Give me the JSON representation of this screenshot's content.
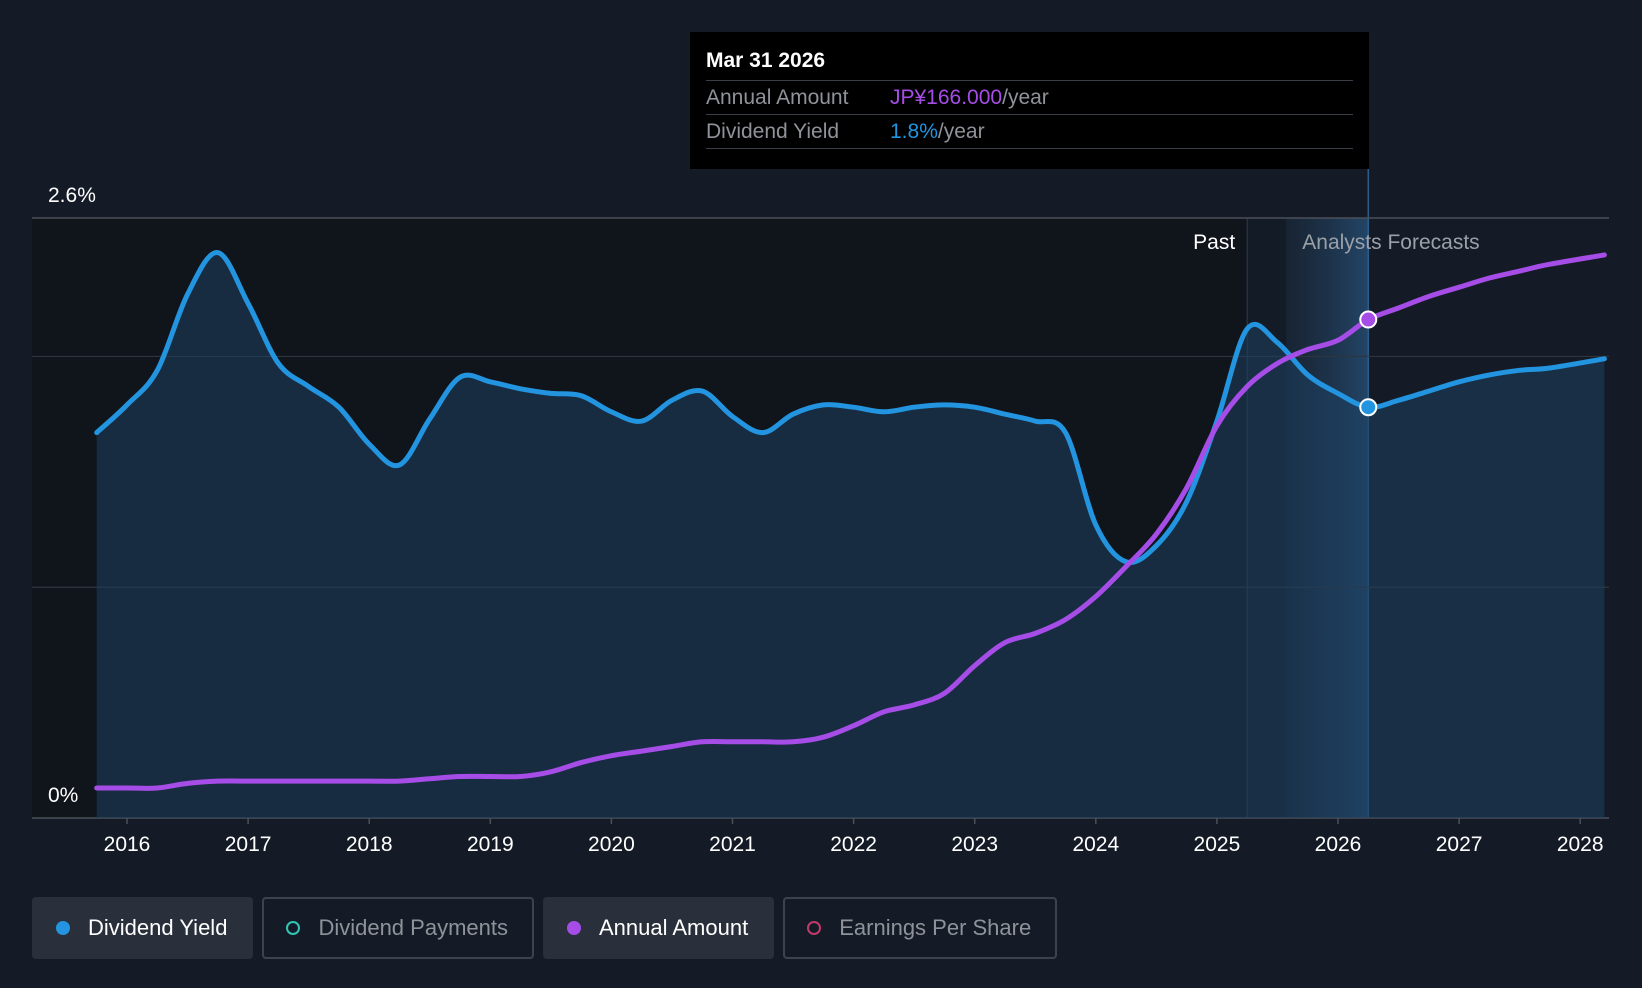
{
  "colors": {
    "background": "#151b26",
    "yield": "#2394df",
    "annual": "#a64de8",
    "payments": "#30c6b5",
    "eps": "#c03a6a"
  },
  "tooltip": {
    "date": "Mar 31 2026",
    "annual_label": "Annual Amount",
    "annual_value": "JP¥166.000",
    "annual_unit": "/year",
    "yield_label": "Dividend Yield",
    "yield_value": "1.8%",
    "yield_unit": "/year"
  },
  "regions": {
    "past_label": "Past",
    "forecast_label": "Analysts Forecasts"
  },
  "legend": [
    {
      "label": "Dividend Yield",
      "icon": "filled-dot",
      "color": "#2394df",
      "active": true
    },
    {
      "label": "Dividend Payments",
      "icon": "hollow-dot",
      "color": "#30c6b5",
      "active": false
    },
    {
      "label": "Annual Amount",
      "icon": "filled-dot",
      "color": "#a64de8",
      "active": true
    },
    {
      "label": "Earnings Per Share",
      "icon": "hollow-dot",
      "color": "#c03a6a",
      "active": false
    }
  ],
  "chart_data": {
    "type": "line",
    "x_ticks": [
      "2016",
      "2017",
      "2018",
      "2019",
      "2020",
      "2021",
      "2022",
      "2023",
      "2024",
      "2025",
      "2026",
      "2027",
      "2028"
    ],
    "y_tick_labels": [
      "2.6%",
      "0%"
    ],
    "ylim": [
      0,
      2.6
    ],
    "xlim": [
      2015.5,
      2028.2
    ],
    "grid": true,
    "past_end": 2025.25,
    "forecast_start": 2025.57,
    "highlight_x": 2026.25,
    "series": [
      {
        "name": "Dividend Yield",
        "color": "#2394df",
        "area": true,
        "points": [
          [
            2015.75,
            1.67
          ],
          [
            2016.0,
            1.79
          ],
          [
            2016.25,
            1.94
          ],
          [
            2016.5,
            2.27
          ],
          [
            2016.75,
            2.45
          ],
          [
            2017.0,
            2.23
          ],
          [
            2017.25,
            1.97
          ],
          [
            2017.5,
            1.87
          ],
          [
            2017.75,
            1.78
          ],
          [
            2018.0,
            1.62
          ],
          [
            2018.25,
            1.53
          ],
          [
            2018.5,
            1.73
          ],
          [
            2018.75,
            1.91
          ],
          [
            2019.0,
            1.89
          ],
          [
            2019.25,
            1.86
          ],
          [
            2019.5,
            1.84
          ],
          [
            2019.75,
            1.83
          ],
          [
            2020.0,
            1.76
          ],
          [
            2020.25,
            1.72
          ],
          [
            2020.5,
            1.81
          ],
          [
            2020.75,
            1.85
          ],
          [
            2021.0,
            1.74
          ],
          [
            2021.25,
            1.67
          ],
          [
            2021.5,
            1.75
          ],
          [
            2021.75,
            1.79
          ],
          [
            2022.0,
            1.78
          ],
          [
            2022.25,
            1.76
          ],
          [
            2022.5,
            1.78
          ],
          [
            2022.75,
            1.79
          ],
          [
            2023.0,
            1.78
          ],
          [
            2023.25,
            1.75
          ],
          [
            2023.5,
            1.72
          ],
          [
            2023.75,
            1.67
          ],
          [
            2024.0,
            1.27
          ],
          [
            2024.25,
            1.11
          ],
          [
            2024.5,
            1.18
          ],
          [
            2024.75,
            1.37
          ],
          [
            2025.0,
            1.72
          ],
          [
            2025.25,
            2.12
          ],
          [
            2025.5,
            2.06
          ],
          [
            2025.75,
            1.92
          ],
          [
            2026.0,
            1.84
          ],
          [
            2026.25,
            1.78
          ],
          [
            2026.5,
            1.81
          ],
          [
            2026.75,
            1.85
          ],
          [
            2027.0,
            1.89
          ],
          [
            2027.25,
            1.92
          ],
          [
            2027.5,
            1.94
          ],
          [
            2027.75,
            1.95
          ],
          [
            2028.2,
            1.99
          ]
        ]
      },
      {
        "name": "Annual Amount",
        "color": "#a64de8",
        "area": false,
        "points": [
          [
            2015.75,
            0.13
          ],
          [
            2016.0,
            0.13
          ],
          [
            2016.25,
            0.13
          ],
          [
            2016.5,
            0.15
          ],
          [
            2016.75,
            0.16
          ],
          [
            2017.0,
            0.16
          ],
          [
            2017.5,
            0.16
          ],
          [
            2018.0,
            0.16
          ],
          [
            2018.25,
            0.16
          ],
          [
            2018.5,
            0.17
          ],
          [
            2018.75,
            0.18
          ],
          [
            2019.0,
            0.18
          ],
          [
            2019.25,
            0.18
          ],
          [
            2019.5,
            0.2
          ],
          [
            2019.75,
            0.24
          ],
          [
            2020.0,
            0.27
          ],
          [
            2020.25,
            0.29
          ],
          [
            2020.5,
            0.31
          ],
          [
            2020.75,
            0.33
          ],
          [
            2021.0,
            0.33
          ],
          [
            2021.25,
            0.33
          ],
          [
            2021.5,
            0.33
          ],
          [
            2021.75,
            0.35
          ],
          [
            2022.0,
            0.4
          ],
          [
            2022.25,
            0.46
          ],
          [
            2022.5,
            0.49
          ],
          [
            2022.75,
            0.54
          ],
          [
            2023.0,
            0.66
          ],
          [
            2023.25,
            0.76
          ],
          [
            2023.5,
            0.8
          ],
          [
            2023.75,
            0.86
          ],
          [
            2024.0,
            0.96
          ],
          [
            2024.25,
            1.09
          ],
          [
            2024.5,
            1.23
          ],
          [
            2024.75,
            1.43
          ],
          [
            2025.0,
            1.7
          ],
          [
            2025.25,
            1.87
          ],
          [
            2025.5,
            1.97
          ],
          [
            2025.75,
            2.03
          ],
          [
            2026.0,
            2.07
          ],
          [
            2026.25,
            2.16
          ],
          [
            2026.5,
            2.21
          ],
          [
            2026.75,
            2.26
          ],
          [
            2027.0,
            2.3
          ],
          [
            2027.25,
            2.34
          ],
          [
            2027.5,
            2.37
          ],
          [
            2027.75,
            2.4
          ],
          [
            2028.2,
            2.44
          ]
        ]
      }
    ]
  }
}
